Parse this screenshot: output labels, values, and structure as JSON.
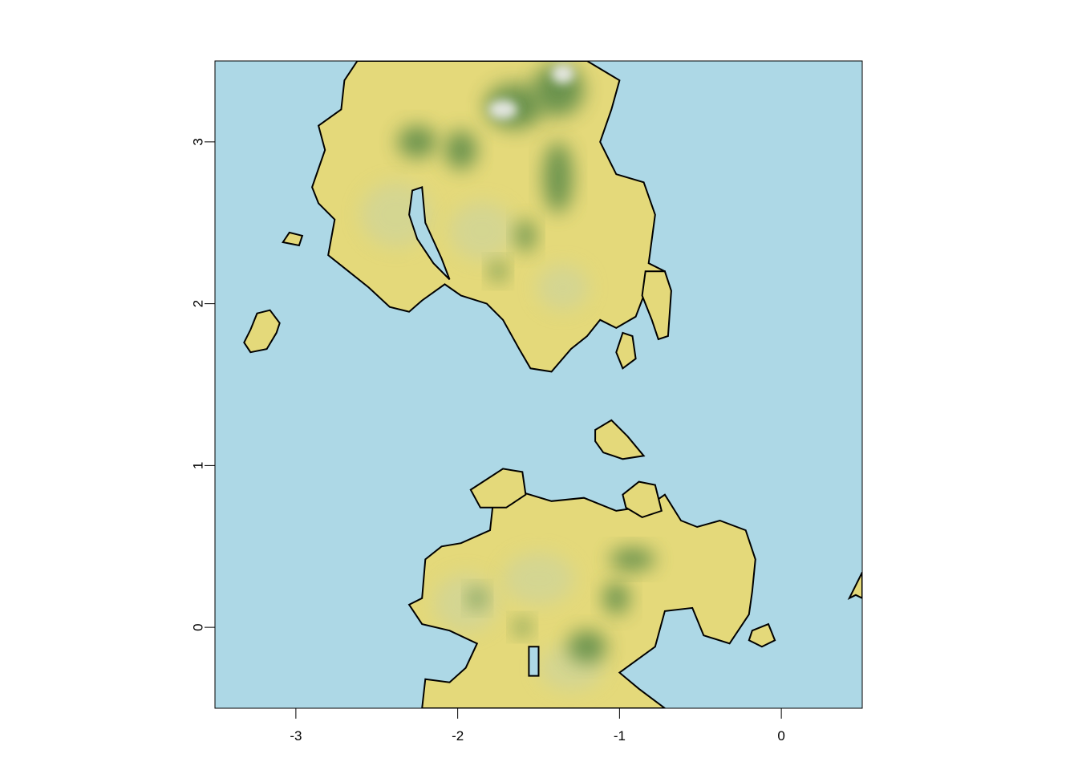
{
  "map": {
    "type": "raster-terrain",
    "x_range": [
      -3.5,
      0.5
    ],
    "y_range": [
      -0.5,
      3.5
    ],
    "x_ticks": [
      {
        "value": -3,
        "label": "-3"
      },
      {
        "value": -2,
        "label": "-2"
      },
      {
        "value": -1,
        "label": "-1"
      },
      {
        "value": 0,
        "label": "0"
      }
    ],
    "y_ticks": [
      {
        "value": 0,
        "label": "0"
      },
      {
        "value": 1,
        "label": "1"
      },
      {
        "value": 2,
        "label": "2"
      },
      {
        "value": 3,
        "label": "3"
      }
    ],
    "colors": {
      "water": "#add8e6",
      "lowland": "#e4d97a",
      "sand": "#e8c838",
      "pale": "#cfd49a",
      "forest": "#5f8c4a",
      "snow": "#eeeeee",
      "coastline": "#000000"
    },
    "landmasses": [
      {
        "name": "north-island",
        "outline": [
          [
            -2.62,
            3.5
          ],
          [
            -1.2,
            3.5
          ],
          [
            -1.0,
            3.38
          ],
          [
            -1.05,
            3.2
          ],
          [
            -1.12,
            3.0
          ],
          [
            -1.02,
            2.8
          ],
          [
            -0.85,
            2.75
          ],
          [
            -0.78,
            2.55
          ],
          [
            -0.82,
            2.25
          ],
          [
            -0.72,
            2.2
          ],
          [
            -0.7,
            2.08
          ],
          [
            -0.85,
            2.05
          ],
          [
            -0.9,
            1.92
          ],
          [
            -1.02,
            1.85
          ],
          [
            -1.12,
            1.9
          ],
          [
            -1.2,
            1.8
          ],
          [
            -1.3,
            1.72
          ],
          [
            -1.42,
            1.58
          ],
          [
            -1.55,
            1.6
          ],
          [
            -1.62,
            1.72
          ],
          [
            -1.72,
            1.9
          ],
          [
            -1.82,
            2.0
          ],
          [
            -1.98,
            2.05
          ],
          [
            -2.08,
            2.12
          ],
          [
            -2.22,
            2.02
          ],
          [
            -2.3,
            1.95
          ],
          [
            -2.42,
            1.98
          ],
          [
            -2.55,
            2.1
          ],
          [
            -2.7,
            2.22
          ],
          [
            -2.8,
            2.3
          ],
          [
            -2.76,
            2.52
          ],
          [
            -2.86,
            2.62
          ],
          [
            -2.9,
            2.72
          ],
          [
            -2.82,
            2.95
          ],
          [
            -2.86,
            3.1
          ],
          [
            -2.72,
            3.2
          ],
          [
            -2.7,
            3.38
          ]
        ],
        "regions": [
          {
            "kind": "pale",
            "center": [
              -2.38,
              2.55
            ],
            "radius": [
              0.22,
              0.2
            ]
          },
          {
            "kind": "pale",
            "center": [
              -1.85,
              2.45
            ],
            "radius": [
              0.2,
              0.18
            ]
          },
          {
            "kind": "pale",
            "center": [
              -1.35,
              2.1
            ],
            "radius": [
              0.16,
              0.14
            ]
          },
          {
            "kind": "forest",
            "center": [
              -2.25,
              3.0
            ],
            "radius": [
              0.12,
              0.1
            ]
          },
          {
            "kind": "forest",
            "center": [
              -1.98,
              2.95
            ],
            "radius": [
              0.1,
              0.12
            ]
          },
          {
            "kind": "forest",
            "center": [
              -1.65,
              3.22
            ],
            "radius": [
              0.18,
              0.14
            ]
          },
          {
            "kind": "forest",
            "center": [
              -1.38,
              3.32
            ],
            "radius": [
              0.16,
              0.16
            ]
          },
          {
            "kind": "forest",
            "center": [
              -1.38,
              2.78
            ],
            "radius": [
              0.09,
              0.22
            ]
          },
          {
            "kind": "forest",
            "center": [
              -1.58,
              2.42
            ],
            "radius": [
              0.06,
              0.1
            ]
          },
          {
            "kind": "forest",
            "center": [
              -1.75,
              2.2
            ],
            "radius": [
              0.05,
              0.06
            ]
          },
          {
            "kind": "snow",
            "center": [
              -1.72,
              3.2
            ],
            "radius": [
              0.09,
              0.06
            ]
          },
          {
            "kind": "snow",
            "center": [
              -1.35,
              3.42
            ],
            "radius": [
              0.07,
              0.06
            ]
          }
        ]
      },
      {
        "name": "south-island",
        "outline": [
          [
            -2.22,
            -0.5
          ],
          [
            -1.3,
            -0.5
          ],
          [
            -0.72,
            -0.5
          ],
          [
            -0.88,
            -0.38
          ],
          [
            -1.0,
            -0.28
          ],
          [
            -0.78,
            -0.12
          ],
          [
            -0.72,
            0.1
          ],
          [
            -0.55,
            0.12
          ],
          [
            -0.48,
            -0.05
          ],
          [
            -0.32,
            -0.1
          ],
          [
            -0.2,
            0.08
          ],
          [
            -0.18,
            0.22
          ],
          [
            -0.16,
            0.42
          ],
          [
            -0.22,
            0.6
          ],
          [
            -0.38,
            0.66
          ],
          [
            -0.52,
            0.62
          ],
          [
            -0.62,
            0.66
          ],
          [
            -0.72,
            0.82
          ],
          [
            -0.82,
            0.75
          ],
          [
            -1.02,
            0.72
          ],
          [
            -1.22,
            0.8
          ],
          [
            -1.42,
            0.78
          ],
          [
            -1.62,
            0.84
          ],
          [
            -1.78,
            0.78
          ],
          [
            -1.8,
            0.6
          ],
          [
            -1.98,
            0.52
          ],
          [
            -2.1,
            0.5
          ],
          [
            -2.2,
            0.42
          ],
          [
            -2.22,
            0.18
          ],
          [
            -2.3,
            0.14
          ],
          [
            -2.22,
            0.02
          ],
          [
            -2.05,
            -0.02
          ],
          [
            -1.88,
            -0.1
          ],
          [
            -1.95,
            -0.25
          ],
          [
            -2.05,
            -0.34
          ],
          [
            -2.2,
            -0.32
          ]
        ],
        "regions": [
          {
            "kind": "pale",
            "center": [
              -1.95,
              0.15
            ],
            "radius": [
              0.2,
              0.18
            ]
          },
          {
            "kind": "pale",
            "center": [
              -1.5,
              0.3
            ],
            "radius": [
              0.22,
              0.16
            ]
          },
          {
            "kind": "pale",
            "center": [
              -1.3,
              -0.25
            ],
            "radius": [
              0.2,
              0.14
            ]
          },
          {
            "kind": "forest",
            "center": [
              -1.88,
              0.18
            ],
            "radius": [
              0.05,
              0.06
            ]
          },
          {
            "kind": "forest",
            "center": [
              -0.92,
              0.42
            ],
            "radius": [
              0.14,
              0.07
            ]
          },
          {
            "kind": "forest",
            "center": [
              -1.02,
              0.18
            ],
            "radius": [
              0.08,
              0.1
            ]
          },
          {
            "kind": "forest",
            "center": [
              -1.2,
              -0.12
            ],
            "radius": [
              0.12,
              0.1
            ]
          },
          {
            "kind": "forest",
            "center": [
              -1.6,
              0.0
            ],
            "radius": [
              0.05,
              0.05
            ]
          }
        ]
      },
      {
        "name": "west-islet",
        "outline": [
          [
            -3.28,
            1.7
          ],
          [
            -3.18,
            1.72
          ],
          [
            -3.12,
            1.82
          ],
          [
            -3.1,
            1.88
          ],
          [
            -3.16,
            1.96
          ],
          [
            -3.24,
            1.94
          ],
          [
            -3.28,
            1.84
          ],
          [
            -3.32,
            1.76
          ]
        ],
        "regions": []
      },
      {
        "name": "north-west-islet",
        "outline": [
          [
            -3.08,
            2.38
          ],
          [
            -2.98,
            2.36
          ],
          [
            -2.96,
            2.42
          ],
          [
            -3.04,
            2.44
          ]
        ],
        "regions": []
      },
      {
        "name": "east-islet-north",
        "outline": [
          [
            -0.84,
            2.2
          ],
          [
            -0.72,
            2.2
          ],
          [
            -0.68,
            2.08
          ],
          [
            -0.7,
            1.8
          ],
          [
            -0.76,
            1.78
          ],
          [
            -0.8,
            1.9
          ],
          [
            -0.86,
            2.05
          ]
        ],
        "regions": []
      },
      {
        "name": "east-islet-north-2",
        "outline": [
          [
            -0.98,
            1.82
          ],
          [
            -0.92,
            1.8
          ],
          [
            -0.9,
            1.66
          ],
          [
            -0.98,
            1.6
          ],
          [
            -1.02,
            1.7
          ]
        ],
        "regions": []
      },
      {
        "name": "mid-islet",
        "outline": [
          [
            -1.15,
            1.22
          ],
          [
            -1.05,
            1.28
          ],
          [
            -0.95,
            1.18
          ],
          [
            -0.85,
            1.06
          ],
          [
            -0.98,
            1.04
          ],
          [
            -1.1,
            1.08
          ],
          [
            -1.15,
            1.15
          ]
        ],
        "regions": []
      },
      {
        "name": "east-islet-south",
        "outline": [
          [
            -0.98,
            0.82
          ],
          [
            -0.88,
            0.9
          ],
          [
            -0.78,
            0.88
          ],
          [
            -0.74,
            0.72
          ],
          [
            -0.86,
            0.68
          ],
          [
            -0.96,
            0.74
          ]
        ],
        "regions": []
      },
      {
        "name": "west-islet-south",
        "outline": [
          [
            -1.92,
            0.85
          ],
          [
            -1.72,
            0.98
          ],
          [
            -1.6,
            0.96
          ],
          [
            -1.58,
            0.82
          ],
          [
            -1.7,
            0.74
          ],
          [
            -1.86,
            0.74
          ]
        ],
        "regions": []
      },
      {
        "name": "east-small-islet",
        "outline": [
          [
            -0.18,
            -0.02
          ],
          [
            -0.08,
            0.02
          ],
          [
            -0.04,
            -0.08
          ],
          [
            -0.12,
            -0.12
          ],
          [
            -0.2,
            -0.08
          ]
        ],
        "regions": []
      },
      {
        "name": "edge-islet",
        "outline": [
          [
            0.42,
            0.18
          ],
          [
            0.5,
            0.34
          ],
          [
            0.5,
            0.18
          ],
          [
            0.46,
            0.2
          ]
        ],
        "regions": []
      }
    ],
    "lakes": [
      {
        "name": "inland-lake",
        "outline": [
          [
            -2.28,
            2.7
          ],
          [
            -2.22,
            2.72
          ],
          [
            -2.2,
            2.5
          ],
          [
            -2.1,
            2.28
          ],
          [
            -2.05,
            2.15
          ],
          [
            -2.15,
            2.25
          ],
          [
            -2.25,
            2.4
          ],
          [
            -2.3,
            2.55
          ]
        ]
      },
      {
        "name": "south-inlet",
        "outline": [
          [
            -1.56,
            -0.12
          ],
          [
            -1.5,
            -0.12
          ],
          [
            -1.5,
            -0.3
          ],
          [
            -1.56,
            -0.3
          ]
        ]
      }
    ]
  }
}
